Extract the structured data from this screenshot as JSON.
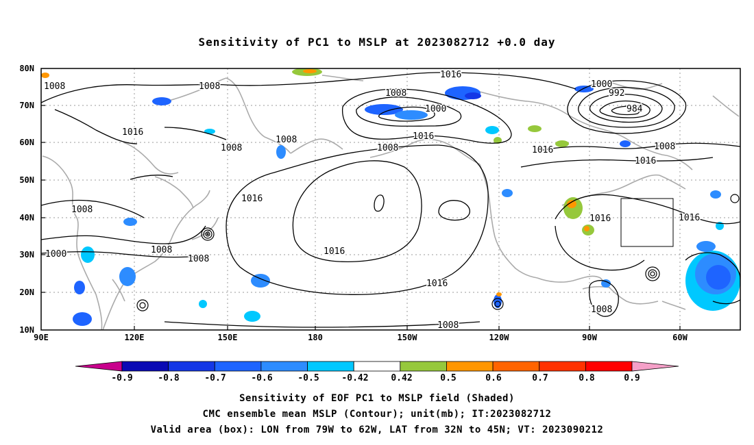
{
  "title": "Sensitivity of PC1 to MSLP at 2023082712 +0.0 day",
  "axes": {
    "lon_ticks": [
      "90E",
      "120E",
      "150E",
      "180",
      "150W",
      "120W",
      "90W",
      "60W"
    ],
    "lat_ticks": [
      "80N",
      "70N",
      "60N",
      "50N",
      "40N",
      "30N",
      "20N",
      "10N"
    ]
  },
  "contour_labels": [
    "1008",
    "1008",
    "1016",
    "1008",
    "1008",
    "1008",
    "1000",
    "1016",
    "1008",
    "1016",
    "1016",
    "1000",
    "992",
    "984",
    "1008",
    "1016",
    "1016",
    "1008",
    "1008",
    "1000",
    "1008",
    "1008",
    "1016",
    "1016",
    "1016",
    "1016",
    "1008"
  ],
  "colorbar": {
    "tick_labels": [
      "-0.9",
      "-0.8",
      "-0.7",
      "-0.6",
      "-0.5",
      "-0.42",
      "0.42",
      "0.5",
      "0.6",
      "0.7",
      "0.8",
      "0.9"
    ],
    "colors": [
      "#c8008c",
      "#0a0ab4",
      "#1437e6",
      "#1e64ff",
      "#2d8cff",
      "#00c8ff",
      "#ffffff",
      "#96c83c",
      "#ff9600",
      "#ff6400",
      "#ff3200",
      "#ff0000",
      "#f5a0c8"
    ]
  },
  "footer": {
    "line1": "Sensitivity of EOF PC1 to MSLP field (Shaded)",
    "line2": "CMC ensemble mean MSLP (Contour); unit(mb); IT:2023082712",
    "line3": "Valid area (box): LON from 79W to 62W, LAT from 32N to 45N; VT: 2023090212"
  }
}
